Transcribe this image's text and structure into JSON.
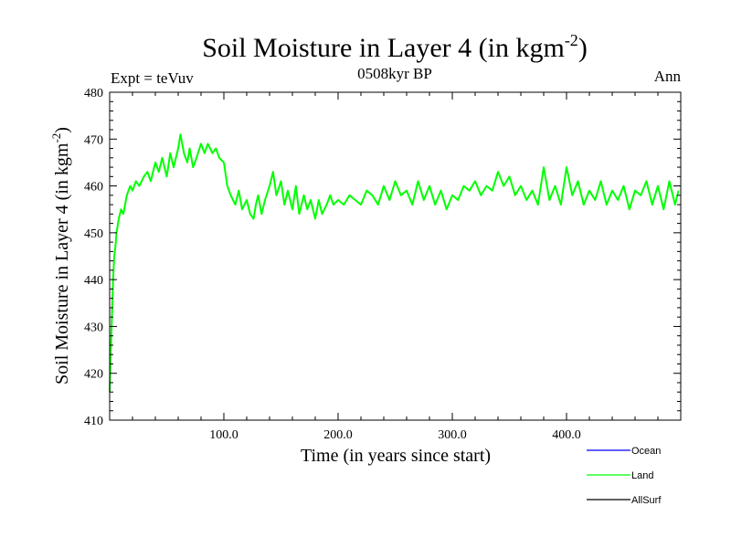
{
  "chart_data": {
    "type": "line",
    "title": "Soil Moisture in Layer 4 (in kgm",
    "title_superscript": "-2",
    "title_suffix": ")",
    "subtitle_left": "Expt = teVuv",
    "subtitle_center": "0508kyr BP",
    "subtitle_right": "Ann",
    "xlabel": "Time (in years since start)",
    "ylabel": "Soil Moisture in Layer 4 (in kgm",
    "ylabel_superscript": "-2",
    "ylabel_suffix": ")",
    "xlim": [
      0,
      500
    ],
    "ylim": [
      410,
      480
    ],
    "x_ticks": [
      100,
      200,
      300,
      400
    ],
    "x_tick_labels": [
      "100.0",
      "200.0",
      "300.0",
      "400.0"
    ],
    "y_ticks": [
      410,
      420,
      430,
      440,
      450,
      460,
      470,
      480
    ],
    "y_tick_labels": [
      "410",
      "420",
      "430",
      "440",
      "450",
      "460",
      "470",
      "480"
    ],
    "grid": false,
    "legend_position": "bottom-right",
    "series": [
      {
        "name": "Ocean",
        "color": "#0000ff",
        "x": [],
        "values": []
      },
      {
        "name": "Land",
        "color": "#00ff00",
        "x": [
          0,
          1,
          2,
          3,
          4,
          5,
          6,
          8,
          10,
          12,
          15,
          18,
          20,
          23,
          26,
          30,
          33,
          36,
          40,
          43,
          46,
          50,
          53,
          56,
          60,
          62,
          65,
          68,
          70,
          73,
          76,
          80,
          83,
          86,
          90,
          93,
          96,
          100,
          103,
          106,
          110,
          113,
          116,
          120,
          123,
          126,
          128,
          130,
          133,
          136,
          140,
          143,
          146,
          150,
          153,
          156,
          160,
          163,
          166,
          170,
          173,
          176,
          180,
          183,
          186,
          190,
          193,
          196,
          200,
          205,
          210,
          215,
          220,
          225,
          230,
          235,
          240,
          245,
          250,
          255,
          260,
          265,
          270,
          275,
          280,
          285,
          290,
          295,
          300,
          305,
          310,
          315,
          320,
          325,
          330,
          335,
          340,
          345,
          350,
          355,
          360,
          365,
          370,
          375,
          380,
          385,
          390,
          395,
          400,
          405,
          410,
          415,
          420,
          425,
          430,
          435,
          440,
          445,
          450,
          455,
          460,
          465,
          470,
          475,
          480,
          485,
          490,
          495,
          498
        ],
        "values": [
          416,
          425,
          432,
          440,
          445,
          447,
          450,
          453,
          455,
          454,
          458,
          460,
          459,
          461,
          460,
          462,
          463,
          461,
          465,
          463,
          466,
          462,
          467,
          464,
          468,
          471,
          467,
          465,
          468,
          464,
          466,
          469,
          467,
          469,
          467,
          468,
          466,
          465,
          460,
          458,
          456,
          459,
          455,
          457,
          454,
          453,
          456,
          458,
          454,
          457,
          460,
          463,
          458,
          461,
          456,
          459,
          455,
          460,
          454,
          458,
          455,
          457,
          453,
          457,
          454,
          456,
          458,
          456,
          457,
          456,
          458,
          457,
          456,
          459,
          458,
          456,
          460,
          457,
          461,
          458,
          459,
          456,
          461,
          457,
          460,
          456,
          459,
          455,
          458,
          457,
          460,
          459,
          461,
          458,
          460,
          459,
          463,
          460,
          462,
          458,
          460,
          457,
          459,
          456,
          464,
          457,
          460,
          456,
          464,
          458,
          461,
          456,
          459,
          457,
          461,
          456,
          459,
          457,
          460,
          455,
          459,
          458,
          461,
          456,
          460,
          455,
          461,
          456,
          459
        ]
      },
      {
        "name": "AllSurf",
        "color": "#000000",
        "x": [],
        "values": []
      }
    ]
  }
}
